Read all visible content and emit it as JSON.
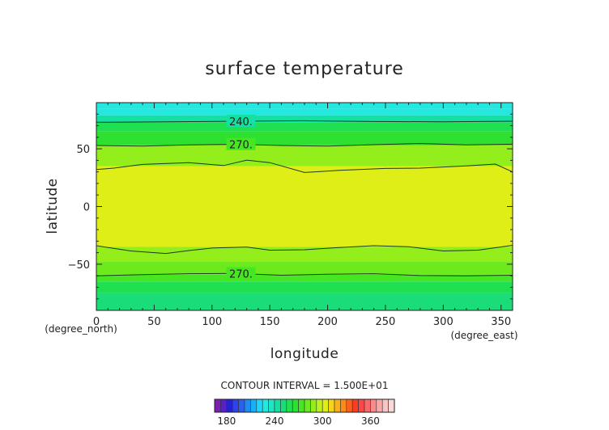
{
  "chart_data": {
    "type": "heatmap",
    "title": "surface temperature",
    "xlabel": "longitude",
    "ylabel": "latitude",
    "x_unit_label": "(degree_east)",
    "y_unit_label": "(degree_north)",
    "xlim": [
      0,
      360
    ],
    "ylim": [
      -90,
      90
    ],
    "x_ticks": [
      0,
      50,
      100,
      150,
      200,
      250,
      300,
      350
    ],
    "y_ticks": [
      -50,
      0,
      50
    ],
    "bands": [
      {
        "from": 85,
        "to": 90,
        "value": 225
      },
      {
        "from": 79,
        "to": 85,
        "value": 232
      },
      {
        "from": 73,
        "to": 79,
        "value": 240
      },
      {
        "from": 65,
        "to": 73,
        "value": 255
      },
      {
        "from": 53,
        "to": 65,
        "value": 265
      },
      {
        "from": 35,
        "to": 53,
        "value": 285
      },
      {
        "from": -35,
        "to": 35,
        "value": 300
      },
      {
        "from": -48,
        "to": -35,
        "value": 290
      },
      {
        "from": -59,
        "to": -48,
        "value": 282
      },
      {
        "from": -65,
        "to": -59,
        "value": 270
      },
      {
        "from": -75,
        "to": -65,
        "value": 262
      },
      {
        "from": -90,
        "to": -75,
        "value": 252
      }
    ],
    "contours": [
      {
        "level": 240,
        "label": "240.",
        "points": [
          [
            0,
            73
          ],
          [
            60,
            73.3
          ],
          [
            120,
            73.9
          ],
          [
            180,
            74.3
          ],
          [
            240,
            73.6
          ],
          [
            300,
            73.4
          ],
          [
            360,
            73.9
          ]
        ],
        "label_x": 125
      },
      {
        "level": 270,
        "label": "270.",
        "points": [
          [
            0,
            52.9
          ],
          [
            40,
            52.3
          ],
          [
            80,
            53.4
          ],
          [
            120,
            53.9
          ],
          [
            160,
            52.9
          ],
          [
            200,
            52.3
          ],
          [
            240,
            53.6
          ],
          [
            280,
            54.6
          ],
          [
            320,
            53.4
          ],
          [
            360,
            54
          ]
        ],
        "label_x": 125
      },
      {
        "level": 300,
        "label": "",
        "points": [
          [
            0,
            32
          ],
          [
            15,
            33.3
          ],
          [
            40,
            36.5
          ],
          [
            80,
            38
          ],
          [
            110,
            35.5
          ],
          [
            130,
            40.2
          ],
          [
            150,
            38
          ],
          [
            180,
            29.5
          ],
          [
            210,
            31.3
          ],
          [
            250,
            33
          ],
          [
            280,
            33.3
          ],
          [
            320,
            35.2
          ],
          [
            345,
            36.8
          ],
          [
            360,
            30
          ]
        ]
      },
      {
        "level": 300,
        "label": "",
        "points": [
          [
            0,
            -34
          ],
          [
            30,
            -38.5
          ],
          [
            60,
            -40.7
          ],
          [
            80,
            -38.2
          ],
          [
            100,
            -36
          ],
          [
            130,
            -35.1
          ],
          [
            150,
            -37.8
          ],
          [
            180,
            -37.5
          ],
          [
            210,
            -35.6
          ],
          [
            240,
            -34
          ],
          [
            270,
            -34.8
          ],
          [
            300,
            -38.5
          ],
          [
            330,
            -37.8
          ],
          [
            360,
            -33.6
          ]
        ]
      },
      {
        "level": 270,
        "label": "270.",
        "points": [
          [
            0,
            -60
          ],
          [
            40,
            -59
          ],
          [
            80,
            -58.2
          ],
          [
            120,
            -58
          ],
          [
            160,
            -59.5
          ],
          [
            200,
            -58.7
          ],
          [
            240,
            -58.2
          ],
          [
            280,
            -59.8
          ],
          [
            320,
            -60
          ],
          [
            360,
            -59.5
          ]
        ],
        "label_x": 125
      }
    ],
    "grid": false,
    "legend": "bottom"
  },
  "colorbar": {
    "title": "CONTOUR INTERVAL = 1.500E+01",
    "tick_labels": [
      "180",
      "240",
      "300",
      "360"
    ],
    "tick_values": [
      180,
      240,
      300,
      360
    ],
    "range": [
      165,
      390
    ],
    "step": 7.5,
    "colors": [
      "#7a1fb0",
      "#5a1fc8",
      "#2222d6",
      "#2e44e8",
      "#2a60ee",
      "#1e8cf2",
      "#14b0f8",
      "#1ed6fb",
      "#22e8e0",
      "#1ee6c4",
      "#14e0a2",
      "#1adc78",
      "#1ee050",
      "#2ee030",
      "#46e622",
      "#6cea1e",
      "#94ee1c",
      "#bcf01e",
      "#e0ee18",
      "#f8d418",
      "#fab018",
      "#fc8a18",
      "#fc601c",
      "#fa3e26",
      "#f84848",
      "#f86868",
      "#f88c8c",
      "#f8a8a8",
      "#f8c4c4",
      "#f8d8d8"
    ]
  }
}
